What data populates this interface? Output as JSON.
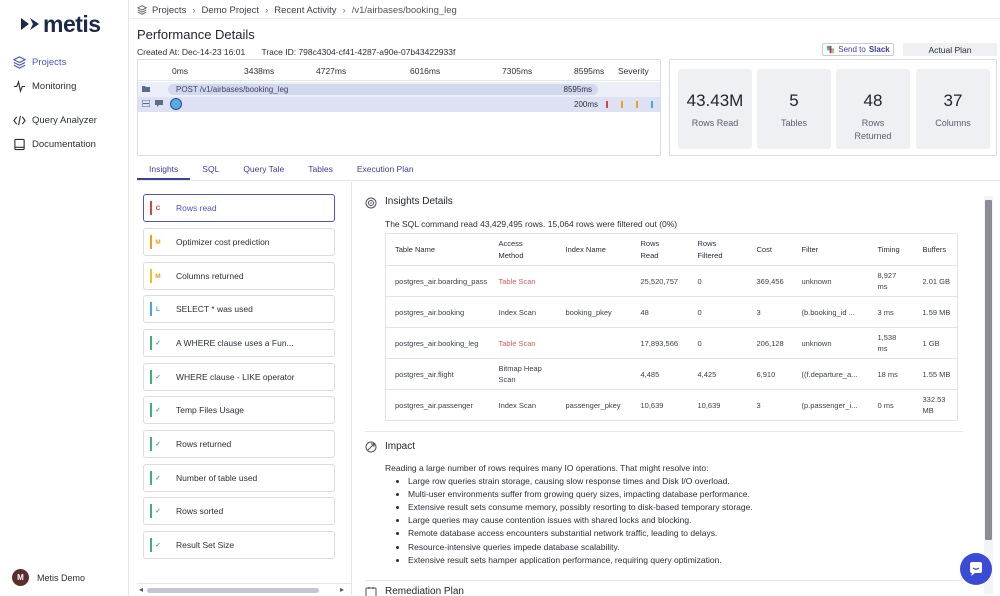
{
  "brand": "metis",
  "sidebar": {
    "items": [
      {
        "label": "Projects",
        "icon": "layers-icon"
      },
      {
        "label": "Monitoring",
        "icon": "activity-icon"
      },
      {
        "label": "Query Analyzer",
        "icon": "code-icon"
      },
      {
        "label": "Documentation",
        "icon": "book-icon"
      }
    ],
    "user": {
      "initial": "M",
      "name": "Metis Demo"
    }
  },
  "breadcrumb": [
    "Projects",
    "Demo Project",
    "Recent Activity",
    "/v1/airbases/booking_leg"
  ],
  "header": {
    "title": "Performance Details",
    "created_at": "Created At:  Dec-14-23 16:01",
    "trace_id": "Trace ID: 798c4304-cf41-4287-a90e-07b43422933f",
    "send_to": "Send to",
    "slack": "Slack",
    "actual_plan": "Actual Plan"
  },
  "trace": {
    "ticks": [
      "0ms",
      "3438ms",
      "4727ms",
      "6016ms",
      "7305ms",
      "8595ms"
    ],
    "severity_label": "Severity",
    "span_label": "POST /v1/airbases/booking_leg",
    "span_duration": "8595ms",
    "query_duration": "200ms",
    "severity_colors": [
      "#d64545",
      "#f0a020",
      "#f0a020",
      "#3fa9e0"
    ]
  },
  "stats": [
    {
      "value": "43.43M",
      "label": "Rows Read"
    },
    {
      "value": "5",
      "label": "Tables"
    },
    {
      "value": "48",
      "label": "Rows Returned"
    },
    {
      "value": "37",
      "label": "Columns"
    }
  ],
  "tabs": [
    "Insights",
    "SQL",
    "Query Tale",
    "Tables",
    "Execution Plan"
  ],
  "insights": [
    {
      "badge": "C",
      "color": "#d64545",
      "label": "Rows read"
    },
    {
      "badge": "M",
      "color": "#f0a020",
      "label": "Optimizer cost prediction"
    },
    {
      "badge": "M",
      "color": "#f0c020",
      "label": "Columns returned"
    },
    {
      "badge": "L",
      "color": "#3fa9e0",
      "label": "SELECT * was used"
    },
    {
      "badge": "✓",
      "color": "#3cb371",
      "label": "A WHERE clause uses a Fun..."
    },
    {
      "badge": "✓",
      "color": "#3cb371",
      "label": "WHERE clause - LIKE operator"
    },
    {
      "badge": "✓",
      "color": "#3cb371",
      "label": "Temp Files Usage"
    },
    {
      "badge": "✓",
      "color": "#3cb371",
      "label": "Rows returned"
    },
    {
      "badge": "✓",
      "color": "#3cb371",
      "label": "Number of table used"
    },
    {
      "badge": "✓",
      "color": "#3cb371",
      "label": "Rows sorted"
    },
    {
      "badge": "✓",
      "color": "#3cb371",
      "label": "Result Set Size"
    }
  ],
  "details": {
    "title": "Insights Details",
    "summary": "The SQL command read 43,429,495 rows. 15,064 rows were filtered out (0%)",
    "columns": [
      "Table Name",
      "Access Method",
      "Index Name",
      "Rows Read",
      "Rows Filtered",
      "Cost",
      "Filter",
      "Timing",
      "Buffers"
    ],
    "rows": [
      [
        "postgres_air.boarding_pass",
        "Table Scan",
        "",
        "25,520,757",
        "0",
        "369,456",
        "unknown",
        "8,927 ms",
        "2.01 GB"
      ],
      [
        "postgres_air.booking",
        "Index Scan",
        "booking_pkey",
        "48",
        "0",
        "3",
        "(b.booking_id ...",
        "3 ms",
        "1.59 MB"
      ],
      [
        "postgres_air.booking_leg",
        "Table Scan",
        "",
        "17,893,566",
        "0",
        "206,128",
        "unknown",
        "1,538 ms",
        "1 GB"
      ],
      [
        "postgres_air.flight",
        "Bitmap Heap Scan",
        "",
        "4,485",
        "4,425",
        "6,910",
        "((f.departure_a...",
        "18 ms",
        "1.55 MB"
      ],
      [
        "postgres_air.passenger",
        "Index Scan",
        "passenger_pkey",
        "10,639",
        "10,639",
        "3",
        "(p.passenger_i...",
        "0 ms",
        "332.53 MB"
      ]
    ]
  },
  "impact": {
    "title": "Impact",
    "intro": "Reading a large number of rows requires many IO operations. That might resolve into:",
    "bullets": [
      "Large row queries strain storage, causing slow response times and Disk I/O overload.",
      "Multi-user environments suffer from growing query sizes, impacting database performance.",
      "Extensive result sets consume memory, possibly resorting to disk-based temporary storage.",
      "Large queries may cause contention issues with shared locks and blocking.",
      "Remote database access encounters substantial network traffic, leading to delays.",
      "Resource-intensive queries impede database scalability.",
      "Extensive result sets hamper application performance, requiring query optimization."
    ]
  },
  "remediation": {
    "title": "Remediation Plan"
  }
}
